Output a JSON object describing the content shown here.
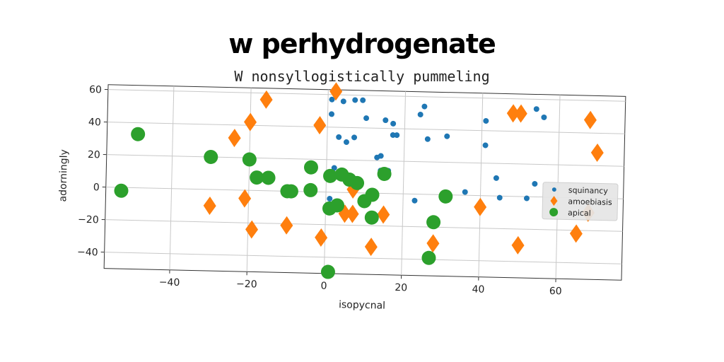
{
  "title": "w perhydrogenate",
  "subtitle": "W nonsyllogistically pummeling",
  "colors": {
    "squinancy": "#1f77b4",
    "amoebiasis": "#ff7f0e",
    "apical": "#2ca02c"
  },
  "chart_data": {
    "type": "scatter",
    "title": "w perhydrogenate",
    "subtitle": "W nonsyllogistically pummeling",
    "xlabel": "isopycnal",
    "ylabel": "adorningly",
    "xlim": [
      -57,
      77
    ],
    "ylim": [
      -50,
      63
    ],
    "xticks": [
      -40,
      -20,
      0,
      20,
      40,
      60
    ],
    "yticks": [
      -40,
      -20,
      0,
      20,
      40,
      60
    ],
    "xtick_labels": [
      "−40",
      "−20",
      "0",
      "20",
      "40",
      "60"
    ],
    "ytick_labels": [
      "−40",
      "−20",
      "0",
      "20",
      "40",
      "60"
    ],
    "grid": true,
    "legend_position": "right",
    "series": [
      {
        "name": "squinancy",
        "marker": "circle",
        "points": [
          [
            2,
            62
          ],
          [
            1,
            57
          ],
          [
            4,
            56
          ],
          [
            7,
            57
          ],
          [
            9,
            57
          ],
          [
            1,
            48
          ],
          [
            10,
            46
          ],
          [
            15,
            45
          ],
          [
            17,
            43
          ],
          [
            17,
            36
          ],
          [
            18,
            36
          ],
          [
            3,
            34
          ],
          [
            5,
            31
          ],
          [
            7,
            34
          ],
          [
            13,
            22
          ],
          [
            14,
            23
          ],
          [
            2,
            15
          ],
          [
            14,
            14
          ],
          [
            16,
            14
          ],
          [
            1,
            -4
          ],
          [
            24,
            49
          ],
          [
            25,
            54
          ],
          [
            26,
            34
          ],
          [
            31,
            36
          ],
          [
            23,
            -4
          ],
          [
            36,
            2
          ],
          [
            41,
            46
          ],
          [
            41,
            31
          ],
          [
            44,
            11
          ],
          [
            45,
            -1
          ],
          [
            52,
            -1
          ],
          [
            54,
            8
          ],
          [
            54,
            54
          ],
          [
            56,
            49
          ]
        ]
      },
      {
        "name": "amoebiasis",
        "marker": "diamond",
        "points": [
          [
            2,
            62
          ],
          [
            -16,
            56
          ],
          [
            -20,
            42
          ],
          [
            -24,
            32
          ],
          [
            -2,
            41
          ],
          [
            -30,
            -10
          ],
          [
            -21,
            -5
          ],
          [
            -19,
            -24
          ],
          [
            -10,
            -21
          ],
          [
            -1,
            -28
          ],
          [
            5,
            -13
          ],
          [
            7,
            -13
          ],
          [
            7,
            2
          ],
          [
            12,
            -33
          ],
          [
            15,
            -13
          ],
          [
            28,
            -30
          ],
          [
            40,
            -7
          ],
          [
            48,
            51
          ],
          [
            50,
            51
          ],
          [
            50,
            -30
          ],
          [
            68,
            48
          ],
          [
            70,
            28
          ],
          [
            65,
            -22
          ],
          [
            68,
            -9
          ]
        ]
      },
      {
        "name": "apical",
        "marker": "circle-large",
        "points": [
          [
            -49,
            33
          ],
          [
            -53,
            -2
          ],
          [
            -30,
            20
          ],
          [
            -20,
            19
          ],
          [
            -18,
            8
          ],
          [
            -15,
            8
          ],
          [
            -10,
            0
          ],
          [
            -9,
            0
          ],
          [
            -4,
            15
          ],
          [
            -4,
            1
          ],
          [
            1,
            10
          ],
          [
            4,
            11
          ],
          [
            6,
            8
          ],
          [
            8,
            6
          ],
          [
            10,
            -5
          ],
          [
            1,
            -10
          ],
          [
            3,
            -8
          ],
          [
            12,
            -15
          ],
          [
            15,
            12
          ],
          [
            12,
            -1
          ],
          [
            28,
            -17
          ],
          [
            31,
            -1
          ],
          [
            27,
            -39
          ],
          [
            1,
            -49
          ]
        ]
      }
    ]
  }
}
